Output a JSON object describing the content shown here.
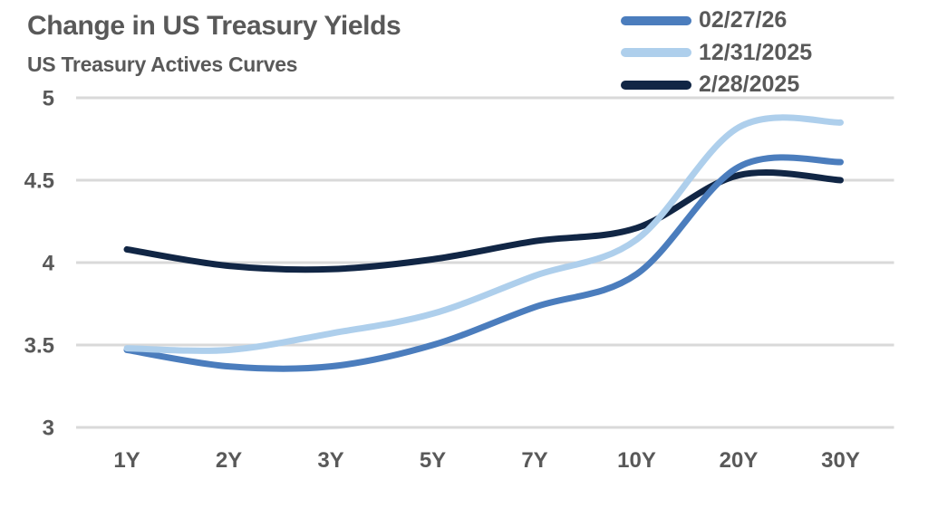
{
  "header": {
    "title": "Change in US Treasury Yields",
    "subtitle": "US Treasury Actives Curves"
  },
  "chart_data": {
    "type": "line",
    "title": "Change in US Treasury Yields",
    "subtitle": "US Treasury Actives Curves",
    "categories": [
      "1Y",
      "2Y",
      "3Y",
      "5Y",
      "7Y",
      "10Y",
      "20Y",
      "30Y"
    ],
    "series": [
      {
        "name": "02/27/26",
        "color": "#4b7dbd",
        "values": [
          3.47,
          3.37,
          3.37,
          3.5,
          3.73,
          3.93,
          4.58,
          4.61
        ]
      },
      {
        "name": "12/31/2025",
        "color": "#aecfec",
        "values": [
          3.48,
          3.47,
          3.57,
          3.69,
          3.92,
          4.14,
          4.82,
          4.85
        ]
      },
      {
        "name": "2/28/2025",
        "color": "#112645",
        "values": [
          4.08,
          3.98,
          3.96,
          4.02,
          4.13,
          4.21,
          4.53,
          4.5
        ]
      }
    ],
    "xlabel": "",
    "ylabel": "",
    "y_ticks": [
      5,
      4.5,
      4,
      3.5,
      3
    ],
    "ylim": [
      3,
      5
    ],
    "grid": "horizontal",
    "gridline_color": "#d9d9d9",
    "text_color": "#595959",
    "legend_position": "top-right",
    "line_style": "smooth"
  }
}
